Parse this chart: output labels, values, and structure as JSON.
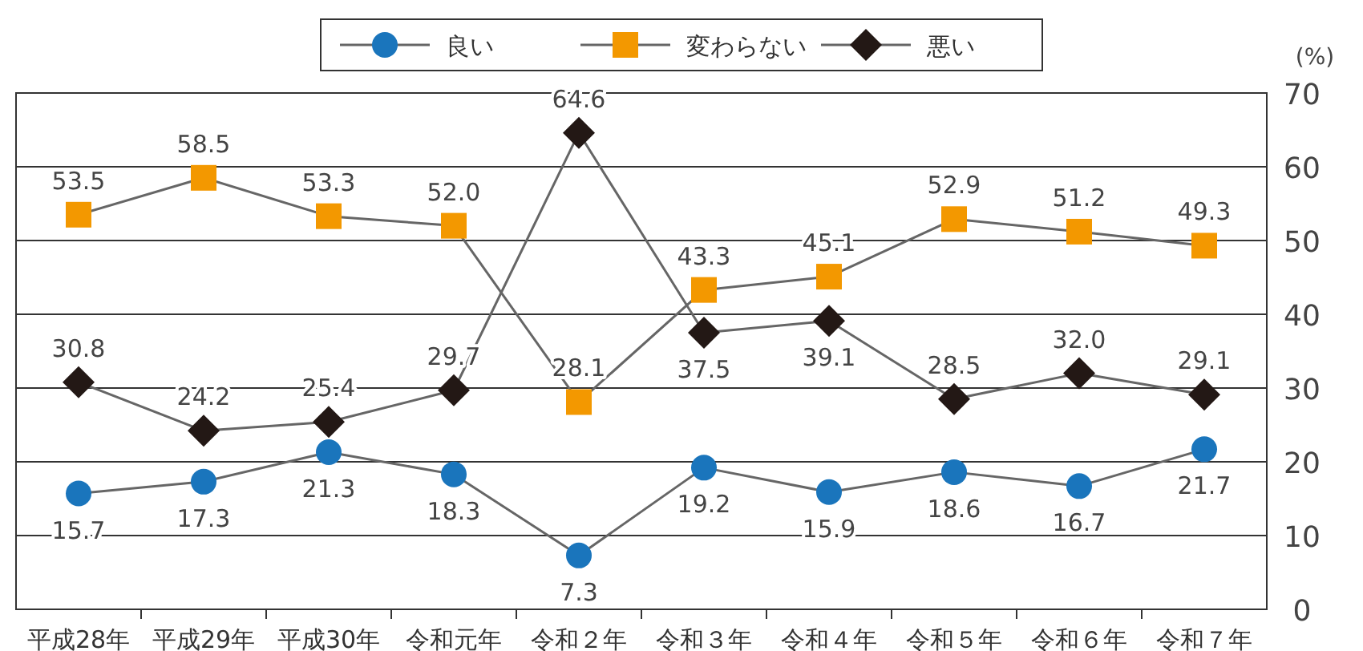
{
  "chart_data": {
    "type": "line",
    "ylabel": "(%)",
    "categories": [
      "平成28年",
      "平成29年",
      "平成30年",
      "令和元年",
      "令和２年",
      "令和３年",
      "令和４年",
      "令和５年",
      "令和６年",
      "令和７年"
    ],
    "series": [
      {
        "name": "良い",
        "color": "#1a75bc",
        "marker": "circle",
        "values": [
          15.7,
          17.3,
          21.3,
          18.3,
          7.3,
          19.2,
          15.9,
          18.6,
          16.7,
          21.7
        ],
        "value_labels": [
          "15.7",
          "17.3",
          "21.3",
          "18.3",
          "7.3",
          "19.2",
          "15.9",
          "18.6",
          "16.7",
          "21.7"
        ]
      },
      {
        "name": "変わらない",
        "color": "#f39800",
        "marker": "square",
        "values": [
          53.5,
          58.5,
          53.3,
          52.0,
          28.1,
          43.3,
          45.1,
          52.9,
          51.2,
          49.3
        ],
        "value_labels": [
          "53.5",
          "58.5",
          "53.3",
          "52.0",
          "28.1",
          "43.3",
          "45.1",
          "52.9",
          "51.2",
          "49.3"
        ]
      },
      {
        "name": "悪い",
        "color": "#231815",
        "marker": "diamond",
        "values": [
          30.8,
          24.2,
          25.4,
          29.7,
          64.6,
          37.5,
          39.1,
          28.5,
          32.0,
          29.1
        ],
        "value_labels": [
          "30.8",
          "24.2",
          "25.4",
          "29.7",
          "64.6",
          "37.5",
          "39.1",
          "28.5",
          "32.0",
          "29.1"
        ]
      }
    ],
    "ylim": [
      0,
      70
    ],
    "yticks": [
      0,
      10,
      20,
      30,
      40,
      50,
      60,
      70
    ],
    "grid": "y",
    "legend": "top"
  }
}
